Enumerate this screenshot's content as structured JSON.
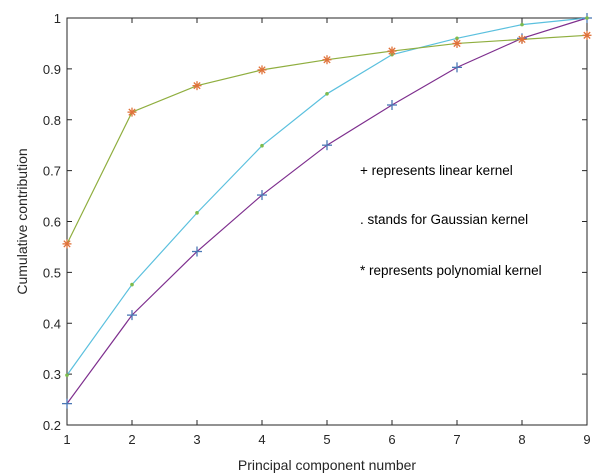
{
  "chart_data": {
    "type": "line",
    "title": "",
    "xlabel": "Principal component number",
    "ylabel": "Cumulative contribution",
    "xlim": [
      1,
      9
    ],
    "ylim": [
      0.2,
      1
    ],
    "xticks": [
      "1",
      "2",
      "3",
      "4",
      "5",
      "6",
      "7",
      "8",
      "9"
    ],
    "yticks": [
      "0.2",
      "0.3",
      "0.4",
      "0.5",
      "0.6",
      "0.7",
      "0.8",
      "0.9",
      "1"
    ],
    "grid": false,
    "x": [
      1,
      2,
      3,
      4,
      5,
      6,
      7,
      8,
      9
    ],
    "series": [
      {
        "kernel": "linear",
        "marker": "+",
        "color": "#7e2f8e",
        "marker_color": "#4a78b5",
        "values": [
          0.242,
          0.416,
          0.541,
          0.652,
          0.75,
          0.829,
          0.903,
          0.96,
          1.0
        ]
      },
      {
        "kernel": "gaussian",
        "marker": ".",
        "color": "#5bc0de",
        "marker_color": "#7dbb4e",
        "values": [
          0.298,
          0.476,
          0.617,
          0.749,
          0.851,
          0.928,
          0.96,
          0.987,
          1.0
        ]
      },
      {
        "kernel": "polynomial",
        "marker": "*",
        "color": "#8fae3f",
        "marker_color": "#e0723a",
        "values": [
          0.556,
          0.815,
          0.867,
          0.898,
          0.918,
          0.935,
          0.95,
          0.958,
          0.966
        ]
      }
    ],
    "annotations": [
      "+ represents linear kernel",
      ". stands for Gaussian kernel",
      "* represents polynomial kernel"
    ]
  }
}
